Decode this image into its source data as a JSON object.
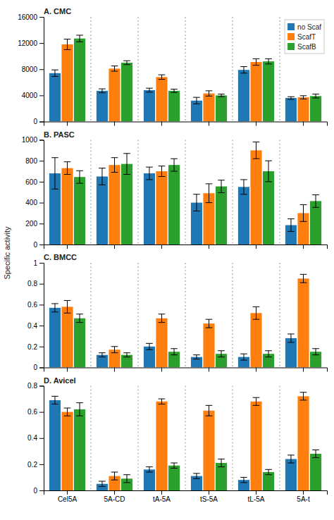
{
  "chart_data": [
    {
      "type": "bar",
      "title": "A. CMC",
      "ylabel": "Specific activity",
      "categories": [
        "Cel5A",
        "5A-CD",
        "tA-5A",
        "tS-5A",
        "tL-5A",
        "5A-t"
      ],
      "series": [
        {
          "name": "no Scaf",
          "values": [
            7400,
            4700,
            4800,
            3200,
            7900,
            3600
          ],
          "errors": [
            500,
            300,
            300,
            500,
            500,
            200
          ]
        },
        {
          "name": "ScafT",
          "values": [
            11800,
            8100,
            6800,
            4300,
            9100,
            3700
          ],
          "errors": [
            800,
            400,
            350,
            400,
            500,
            250
          ]
        },
        {
          "name": "ScafB",
          "values": [
            12700,
            9000,
            4700,
            4000,
            9200,
            3900
          ],
          "errors": [
            500,
            300,
            250,
            200,
            400,
            300
          ]
        }
      ],
      "ylim": [
        0,
        16000
      ],
      "yticks": [
        0,
        4000,
        8000,
        12000,
        16000
      ],
      "legend": "upper right",
      "tick_labels": "y"
    },
    {
      "type": "bar",
      "title": "B. PASC",
      "categories": [
        "Cel5A",
        "5A-CD",
        "tA-5A",
        "tS-5A",
        "tL-5A",
        "5A-t"
      ],
      "series": [
        {
          "name": "no Scaf",
          "values": [
            680,
            650,
            680,
            400,
            550,
            185
          ],
          "errors": [
            150,
            80,
            60,
            80,
            70,
            60
          ]
        },
        {
          "name": "ScafT",
          "values": [
            730,
            760,
            700,
            490,
            900,
            300
          ],
          "errors": [
            60,
            70,
            50,
            90,
            80,
            80
          ]
        },
        {
          "name": "ScafB",
          "values": [
            645,
            770,
            760,
            555,
            700,
            415
          ],
          "errors": [
            60,
            100,
            60,
            60,
            100,
            60
          ]
        }
      ],
      "ylim": [
        0,
        1000
      ],
      "yticks": [
        0,
        200,
        400,
        600,
        800,
        1000
      ],
      "tick_labels": "y"
    },
    {
      "type": "bar",
      "title": "C. BMCC",
      "categories": [
        "Cel5A",
        "5A-CD",
        "tA-5A",
        "tS-5A",
        "tL-5A",
        "5A-t"
      ],
      "series": [
        {
          "name": "no Scaf",
          "values": [
            0.57,
            0.12,
            0.2,
            0.1,
            0.1,
            0.28
          ],
          "errors": [
            0.04,
            0.02,
            0.03,
            0.02,
            0.03,
            0.04
          ]
        },
        {
          "name": "ScafT",
          "values": [
            0.58,
            0.17,
            0.47,
            0.42,
            0.52,
            0.85
          ],
          "errors": [
            0.06,
            0.03,
            0.04,
            0.04,
            0.06,
            0.04
          ]
        },
        {
          "name": "ScafB",
          "values": [
            0.47,
            0.12,
            0.15,
            0.13,
            0.13,
            0.15
          ],
          "errors": [
            0.04,
            0.02,
            0.03,
            0.03,
            0.03,
            0.03
          ]
        }
      ],
      "ylim": [
        0,
        1
      ],
      "yticks": [
        0,
        0.2,
        0.4,
        0.6,
        0.8,
        1
      ],
      "tick_labels": "y"
    },
    {
      "type": "bar",
      "title": "D. Avicel",
      "categories": [
        "Cel5A",
        "5A-CD",
        "tA-5A",
        "tS-5A",
        "tL-5A",
        "5A-t"
      ],
      "series": [
        {
          "name": "no Scaf",
          "values": [
            0.69,
            0.05,
            0.16,
            0.11,
            0.08,
            0.24
          ],
          "errors": [
            0.03,
            0.02,
            0.02,
            0.02,
            0.02,
            0.03
          ]
        },
        {
          "name": "ScafT",
          "values": [
            0.6,
            0.11,
            0.68,
            0.61,
            0.68,
            0.72
          ],
          "errors": [
            0.03,
            0.03,
            0.02,
            0.04,
            0.03,
            0.03
          ]
        },
        {
          "name": "ScafB",
          "values": [
            0.62,
            0.09,
            0.19,
            0.21,
            0.14,
            0.28
          ],
          "errors": [
            0.05,
            0.03,
            0.02,
            0.03,
            0.02,
            0.03
          ]
        }
      ],
      "ylim": [
        0,
        0.8
      ],
      "yticks": [
        0,
        0.2,
        0.4,
        0.6,
        0.8
      ]
    }
  ]
}
